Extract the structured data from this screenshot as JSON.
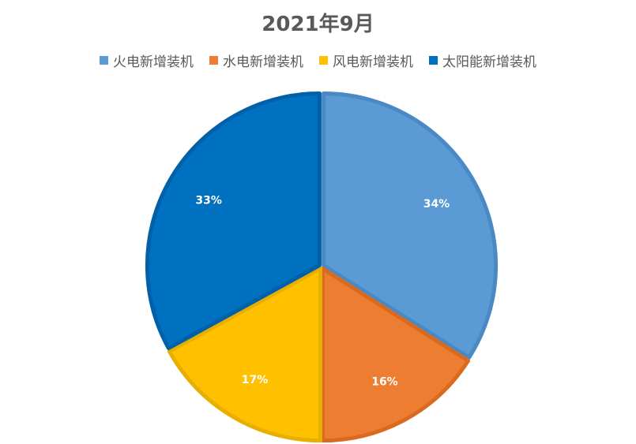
{
  "chart_data": {
    "type": "pie",
    "title": "2021年9月",
    "legend_position": "top",
    "categories": [
      "火电新增装机",
      "水电新增装机",
      "风电新增装机",
      "太阳能新增装机"
    ],
    "values": [
      34,
      16,
      17,
      33
    ],
    "labels": [
      "34%",
      "16%",
      "17%",
      "33%"
    ],
    "colors": [
      "#5B9BD5",
      "#ED7D31",
      "#FFC000",
      "#0070C0"
    ],
    "border_colors": [
      "#4A89C4",
      "#D96A20",
      "#E8AE00",
      "#0060A8"
    ],
    "start_angle_deg": 0,
    "direction": "clockwise"
  }
}
